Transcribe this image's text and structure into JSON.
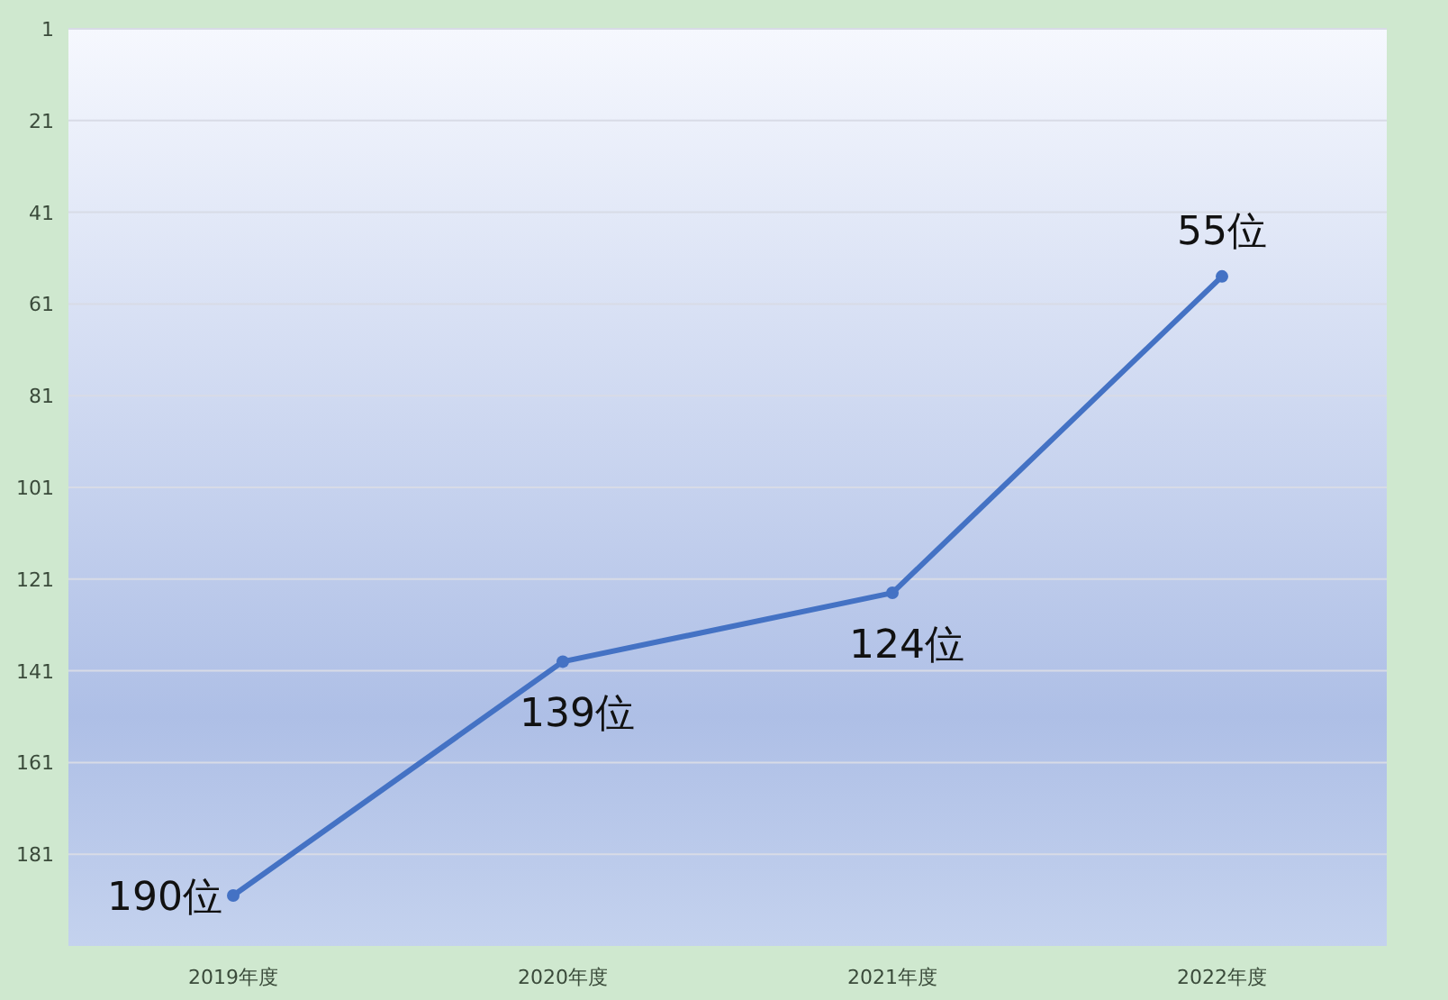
{
  "chart_data": {
    "type": "line",
    "categories": [
      "2019年度",
      "2020年度",
      "2021年度",
      "2022年度"
    ],
    "values": [
      190,
      139,
      124,
      55
    ],
    "value_labels": [
      "190位",
      "139位",
      "124位",
      "55位"
    ],
    "color": "#4472c4",
    "marker": "circle",
    "ylim": [
      201,
      1
    ],
    "yticks": [
      1,
      21,
      41,
      61,
      81,
      101,
      121,
      141,
      161,
      181
    ],
    "grid": "y"
  }
}
